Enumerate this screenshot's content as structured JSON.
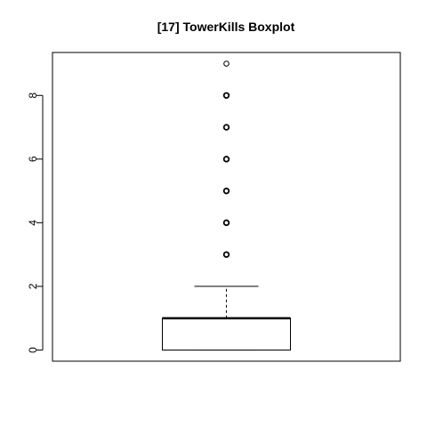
{
  "chart_data": {
    "type": "boxplot",
    "title": "[17] TowerKills Boxplot",
    "xlabel": "",
    "ylabel": "",
    "ylim": [
      -0.35,
      9.35
    ],
    "yticks": [
      0,
      2,
      4,
      6,
      8
    ],
    "ytick_labels": [
      "0",
      "2",
      "4",
      "6",
      "8"
    ],
    "grid": false,
    "box": {
      "lower_whisker": 0,
      "q1": 0,
      "median": 1,
      "q3": 1,
      "upper_whisker": 2
    },
    "outliers": [
      3,
      4,
      5,
      6,
      7,
      8,
      9
    ]
  }
}
